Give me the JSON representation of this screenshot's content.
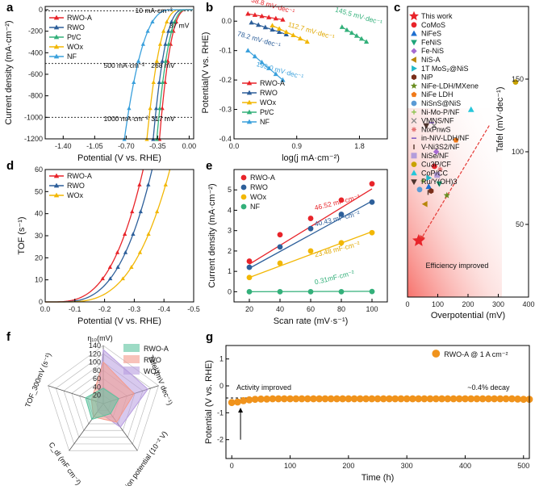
{
  "panels": {
    "a": "a",
    "b": "b",
    "c": "c",
    "d": "d",
    "e": "e",
    "f": "f",
    "g": "g"
  },
  "colors": {
    "RWO-A": "#e8242a",
    "RWO": "#2d5f9a",
    "Pt/C": "#33b07a",
    "WOx": "#f2b705",
    "NF": "#3aa0dc",
    "ref_line": "#333333",
    "stability": "#f0931c",
    "arrow": "#e53935"
  },
  "chart_data": [
    {
      "id": "a",
      "type": "line",
      "xlabel": "Potential (V vs. RHE)",
      "ylabel": "Current density (mA·cm⁻²)",
      "xlim": [
        -1.6,
        0.05
      ],
      "ylim": [
        -1200,
        30
      ],
      "xticks": [
        "-1.40",
        "-1.05",
        "-0.70",
        "-0.35",
        "0.00"
      ],
      "xtick_values": [
        -1.4,
        -1.05,
        -0.7,
        -0.35,
        0
      ],
      "yticks": [
        "0",
        "-200",
        "-400",
        "-600",
        "-800",
        "-1000",
        "-1200"
      ],
      "ytick_values": [
        0,
        -200,
        -400,
        -600,
        -800,
        -1000,
        -1200
      ],
      "legend": [
        "RWO-A",
        "RWO",
        "Pt/C",
        "WOx",
        "NF"
      ],
      "series": [
        {
          "name": "RWO-A",
          "onset": -0.02,
          "end": -0.33,
          "k": 0.06
        },
        {
          "name": "RWO",
          "onset": -0.06,
          "end": -0.4,
          "k": 0.07
        },
        {
          "name": "Pt/C",
          "onset": -0.03,
          "end": -0.36,
          "k": 0.07
        },
        {
          "name": "WOx",
          "onset": -0.1,
          "end": -0.47,
          "k": 0.08
        },
        {
          "name": "NF",
          "onset": -0.2,
          "end": -0.72,
          "k": 0.1
        }
      ],
      "ref_lines": [
        -10,
        -500,
        -1000
      ],
      "annotations": [
        {
          "text": "10 mA·cm⁻²",
          "x": -0.6,
          "y": -30
        },
        {
          "text": "37 mV",
          "x": 0.0,
          "y": -170
        },
        {
          "text": "500 mA·cm⁻²",
          "x": -0.95,
          "y": -540
        },
        {
          "text": "268 mV",
          "x": -0.16,
          "y": -540
        },
        {
          "text": "1000 mA·cm⁻²",
          "x": -0.95,
          "y": -1035
        },
        {
          "text": "317 mV",
          "x": -0.16,
          "y": -1035
        }
      ]
    },
    {
      "id": "b",
      "type": "scatter",
      "xlabel": "log(j mA·cm⁻²)",
      "ylabel": "Potential(V vs. RHE)",
      "xlim": [
        0,
        2.2
      ],
      "ylim": [
        -0.4,
        0.05
      ],
      "xticks": [
        "0.0",
        "0.9",
        "1.8"
      ],
      "xtick_values": [
        0,
        0.9,
        1.8
      ],
      "yticks": [
        "0.0",
        "-0.1",
        "-0.2",
        "-0.3",
        "-0.4"
      ],
      "ytick_values": [
        0,
        -0.1,
        -0.2,
        -0.3,
        -0.4
      ],
      "legend": [
        "RWO-A",
        "RWO",
        "WOx",
        "Pt/C",
        "NF"
      ],
      "series": [
        {
          "name": "RWO-A",
          "x": [
            0.2,
            0.3,
            0.4,
            0.5,
            0.6,
            0.7
          ],
          "y": [
            0.025,
            0.021,
            0.017,
            0.013,
            0.009,
            0.005
          ]
        },
        {
          "name": "RWO",
          "x": [
            0.25,
            0.35,
            0.45,
            0.55,
            0.65,
            0.75
          ],
          "y": [
            -0.005,
            -0.013,
            -0.021,
            -0.029,
            -0.037,
            -0.045
          ]
        },
        {
          "name": "WOx",
          "x": [
            0.55,
            0.65,
            0.75,
            0.85,
            0.95,
            1.05
          ],
          "y": [
            -0.015,
            -0.026,
            -0.037,
            -0.048,
            -0.059,
            -0.07
          ]
        },
        {
          "name": "Pt/C",
          "x": [
            1.55,
            1.62,
            1.69,
            1.76,
            1.83,
            1.9
          ],
          "y": [
            -0.02,
            -0.03,
            -0.04,
            -0.05,
            -0.06,
            -0.07
          ]
        },
        {
          "name": "NF",
          "x": [
            0.2,
            0.3,
            0.4,
            0.5,
            0.6,
            0.7
          ],
          "y": [
            -0.1,
            -0.12,
            -0.14,
            -0.16,
            -0.18,
            -0.2
          ]
        }
      ],
      "annotations": [
        {
          "text": "38.8 mV·dec⁻¹",
          "series": "RWO-A",
          "x": 0.55,
          "y": 0.045
        },
        {
          "text": "78.2 mV·dec⁻¹",
          "series": "RWO",
          "x": 0.35,
          "y": -0.07
        },
        {
          "text": "112.7 mV·dec⁻¹",
          "series": "WOx",
          "x": 1.1,
          "y": -0.04
        },
        {
          "text": "145.5 mV·dec⁻¹",
          "series": "Pt/C",
          "x": 1.78,
          "y": 0.01
        },
        {
          "text": "199.0 mV·dec⁻¹",
          "series": "NF",
          "x": 0.65,
          "y": -0.175
        }
      ]
    },
    {
      "id": "c",
      "type": "scatter",
      "xlabel": "Overpotential (mV)",
      "ylabel": "Tafel (mV·dec⁻¹)",
      "xlim": [
        0,
        400
      ],
      "ylim": [
        0,
        200
      ],
      "xticks": [
        "0",
        "100",
        "200",
        "300",
        "400"
      ],
      "xtick_values": [
        0,
        100,
        200,
        300,
        400
      ],
      "yticks": [
        "50",
        "100",
        "150"
      ],
      "ytick_values": [
        50,
        100,
        150
      ],
      "legend_note": "Efficiency improved",
      "points": [
        {
          "name": "This work",
          "x": 37,
          "y": 38.8,
          "color": "#e8242a",
          "marker": "star"
        },
        {
          "name": "CoMoS",
          "x": 89,
          "y": 90,
          "color": "#e8242a",
          "marker": "circle"
        },
        {
          "name": "NiFeS",
          "x": 70,
          "y": 76,
          "color": "#1e6fd0",
          "marker": "triangle"
        },
        {
          "name": "FeNiS",
          "x": 105,
          "y": 78,
          "color": "#1fa57a",
          "marker": "tri-down"
        },
        {
          "name": "Fe-NiS",
          "x": 95,
          "y": 100,
          "color": "#a66bd1",
          "marker": "diamond"
        },
        {
          "name": "NiS-A",
          "x": 58,
          "y": 64,
          "color": "#b8860b",
          "marker": "tri-left"
        },
        {
          "name": "1T MoS₂@NiS",
          "x": 70,
          "y": 82,
          "color": "#22b8c9",
          "marker": "tri-right"
        },
        {
          "name": "NiP",
          "x": 78,
          "y": 73,
          "color": "#7a2e1a",
          "marker": "hexagon"
        },
        {
          "name": "NiFe-LDH/MXene",
          "x": 130,
          "y": 70,
          "color": "#6b8e23",
          "marker": "star"
        },
        {
          "name": "NiFe LDH",
          "x": 160,
          "y": 108,
          "color": "#f07a1a",
          "marker": "pentagon"
        },
        {
          "name": "NiSnS@NiS",
          "x": 40,
          "y": 74,
          "color": "#5b9bd5",
          "marker": "circle"
        },
        {
          "name": "Ni-Mo-P/NF",
          "x": 52,
          "y": 80,
          "color": "#8bc34a",
          "marker": "plus"
        },
        {
          "name": "VMNS/NF",
          "x": 88,
          "y": 118,
          "color": "#888888",
          "marker": "x"
        },
        {
          "name": "NixPnwS",
          "x": 108,
          "y": 88,
          "color": "#e57373",
          "marker": "asterisk"
        },
        {
          "name": "in-NiV-LDH/NF",
          "x": 80,
          "y": 120,
          "color": "#7e57c2",
          "marker": "hline"
        },
        {
          "name": "V-Ni3S2/NF",
          "x": 68,
          "y": 72,
          "color": "#5d4037",
          "marker": "vline"
        },
        {
          "name": "NiSe/NF",
          "x": 98,
          "y": 84,
          "color": "#b39ddb",
          "marker": "square"
        },
        {
          "name": "Cu3P/CF",
          "x": 357,
          "y": 148,
          "color": "#c8a200",
          "marker": "circle"
        },
        {
          "name": "CoP/CC",
          "x": 210,
          "y": 129,
          "color": "#26c6da",
          "marker": "triangle"
        },
        {
          "name": "Ru/Y(OH)3",
          "x": 62,
          "y": 118,
          "color": "#4e342e",
          "marker": "tri-down"
        }
      ]
    },
    {
      "id": "d",
      "type": "line",
      "xlabel": "Potential (V vs. RHE)",
      "ylabel": "TOF (s⁻¹)",
      "xlim": [
        0,
        -0.5
      ],
      "ylim": [
        0,
        60
      ],
      "xticks": [
        "0.0",
        "-0.1",
        "-0.2",
        "-0.3",
        "-0.4",
        "-0.5"
      ],
      "xtick_values": [
        0,
        -0.1,
        -0.2,
        -0.3,
        -0.4,
        -0.5
      ],
      "yticks": [
        "0",
        "10",
        "20",
        "30",
        "40",
        "50",
        "60"
      ],
      "ytick_values": [
        0,
        10,
        20,
        30,
        40,
        50,
        60
      ],
      "legend": [
        "RWO-A",
        "RWO",
        "WOx"
      ],
      "series": [
        {
          "name": "RWO-A",
          "onset": -0.02,
          "end": -0.33
        },
        {
          "name": "RWO",
          "onset": -0.04,
          "end": -0.36
        },
        {
          "name": "WOx",
          "onset": -0.06,
          "end": -0.42
        }
      ]
    },
    {
      "id": "e",
      "type": "scatter",
      "xlabel": "Scan rate (mV·s⁻¹)",
      "ylabel": "Current density (mA·cm⁻²)",
      "xlim": [
        10,
        110
      ],
      "ylim": [
        -0.5,
        6
      ],
      "xticks": [
        "20",
        "40",
        "60",
        "80",
        "100"
      ],
      "xtick_values": [
        20,
        40,
        60,
        80,
        100
      ],
      "yticks": [
        "0",
        "1",
        "2",
        "3",
        "4",
        "5"
      ],
      "ytick_values": [
        0,
        1,
        2,
        3,
        4,
        5
      ],
      "legend": [
        "RWO-A",
        "RWO",
        "WOx",
        "NF"
      ],
      "x": [
        20,
        40,
        60,
        80,
        100
      ],
      "series": [
        {
          "name": "RWO-A",
          "values": [
            1.5,
            2.8,
            3.6,
            4.5,
            5.3
          ],
          "fit": [
            1.35,
            5.05
          ],
          "slope_label": "46.52 mF·cm⁻²",
          "label_x": 63,
          "label_y": 4.0
        },
        {
          "name": "RWO",
          "values": [
            1.2,
            2.2,
            3.1,
            3.8,
            4.4
          ],
          "fit": [
            1.15,
            4.45
          ],
          "slope_label": "40.43 mF·cm⁻²",
          "label_x": 63,
          "label_y": 3.2
        },
        {
          "name": "WOx",
          "values": [
            0.7,
            1.4,
            2.0,
            2.4,
            2.9
          ],
          "fit": [
            0.7,
            2.95
          ],
          "slope_label": "23.48 mF·cm⁻²",
          "label_x": 63,
          "label_y": 1.7
        },
        {
          "name": "NF",
          "values": [
            0.0,
            0.0,
            0.0,
            0.0,
            0.01
          ],
          "fit": [
            0.0,
            0.02
          ],
          "slope_label": "0.31mF·cm⁻²",
          "label_x": 63,
          "label_y": 0.35
        }
      ]
    },
    {
      "id": "f",
      "type": "radar",
      "axes": [
        "η₁₀(mV)",
        "Tafel (mV dec⁻¹)",
        "Corrosion potential (10⁻² V)",
        "C_dl (mF cm⁻²)",
        "TOF_300mV (s⁻¹)"
      ],
      "rticks": [
        "20",
        "40",
        "60",
        "80",
        "100",
        "120",
        "140"
      ],
      "rtick_values": [
        20,
        40,
        60,
        80,
        100,
        120,
        140
      ],
      "rmax": 140,
      "legend": [
        "RWO-A",
        "RWO",
        "WOx"
      ],
      "series": [
        {
          "name": "RWO-A",
          "values": [
            37,
            39,
            30,
            47,
            45
          ],
          "color": "#5cc39e"
        },
        {
          "name": "RWO",
          "values": [
            100,
            78,
            55,
            40,
            30
          ],
          "color": "#f49a8c"
        },
        {
          "name": "WOx",
          "values": [
            130,
            113,
            70,
            23,
            15
          ],
          "color": "#b89de0"
        }
      ]
    },
    {
      "id": "g",
      "type": "scatter",
      "xlabel": "Time (h)",
      "ylabel": "Potential (V vs. RHE)",
      "xlim": [
        -10,
        510
      ],
      "ylim": [
        -2.7,
        1.5
      ],
      "xticks": [
        "0",
        "100",
        "200",
        "300",
        "400",
        "500"
      ],
      "xtick_values": [
        0,
        100,
        200,
        300,
        400,
        500
      ],
      "yticks": [
        "1",
        "0",
        "-1",
        "-2"
      ],
      "ytick_values": [
        1,
        0,
        -1,
        -2
      ],
      "legend": [
        "RWO-A @ 1 A cm⁻²"
      ],
      "x": [
        0,
        10,
        20,
        30,
        40,
        50,
        60,
        70,
        80,
        90,
        100,
        110,
        120,
        130,
        140,
        150,
        160,
        170,
        180,
        190,
        200,
        210,
        220,
        230,
        240,
        250,
        260,
        270,
        280,
        290,
        300,
        310,
        320,
        330,
        340,
        350,
        360,
        370,
        380,
        390,
        400,
        410,
        420,
        430,
        440,
        450,
        460,
        470,
        480,
        490,
        500,
        510
      ],
      "values": [
        -0.62,
        -0.6,
        -0.55,
        -0.52,
        -0.5,
        -0.49,
        -0.49,
        -0.48,
        -0.48,
        -0.48,
        -0.48,
        -0.48,
        -0.48,
        -0.48,
        -0.48,
        -0.48,
        -0.48,
        -0.48,
        -0.48,
        -0.48,
        -0.48,
        -0.48,
        -0.48,
        -0.48,
        -0.48,
        -0.48,
        -0.48,
        -0.48,
        -0.48,
        -0.48,
        -0.48,
        -0.48,
        -0.48,
        -0.48,
        -0.48,
        -0.48,
        -0.48,
        -0.48,
        -0.48,
        -0.48,
        -0.48,
        -0.48,
        -0.48,
        -0.48,
        -0.48,
        -0.48,
        -0.48,
        -0.48,
        -0.48,
        -0.49,
        -0.5,
        -0.5
      ],
      "ref_value": -0.45,
      "annotations": [
        {
          "text": "Activity improved",
          "x": 8,
          "y": -0.15
        },
        {
          "text": "~0.4% decay",
          "x": 440,
          "y": -0.15
        }
      ]
    }
  ]
}
